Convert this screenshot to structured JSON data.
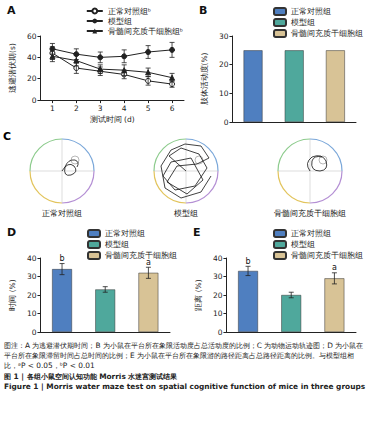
{
  "chart_data": [
    {
      "panel_label": "A",
      "type": "line",
      "x": [
        1,
        2,
        3,
        4,
        5,
        6
      ],
      "xlim": [
        0.5,
        6.5
      ],
      "xticks": [
        1,
        2,
        3,
        4,
        5,
        6
      ],
      "ylim": [
        0,
        60
      ],
      "yticks": [
        0,
        20,
        40,
        60
      ],
      "x_label": "测试时间 (d)",
      "y_label": "逃避潜伏期(s)",
      "legend": "top-right",
      "grid": false,
      "series": [
        {
          "name": "正常对照组ᵇ",
          "color": "#222222",
          "marker": "open_circle",
          "line_style": "solid",
          "values": [
            44,
            30,
            27,
            24,
            18,
            15
          ],
          "errors": [
            6,
            5,
            4,
            4,
            4,
            3
          ]
        },
        {
          "name": "模型组",
          "color": "#222222",
          "marker": "circle",
          "line_style": "solid",
          "values": [
            48,
            43,
            40,
            41,
            45,
            47
          ],
          "errors": [
            5,
            5,
            5,
            6,
            6,
            7
          ]
        },
        {
          "name": "骨髓间充质干细胞组ᵇ",
          "color": "#222222",
          "marker": "triangle",
          "line_style": "solid",
          "values": [
            41,
            37,
            29,
            28,
            26,
            21
          ],
          "errors": [
            5,
            5,
            4,
            5,
            4,
            4
          ]
        }
      ]
    },
    {
      "panel_label": "B",
      "type": "bar",
      "categories": [
        "正常对照组",
        "模型组",
        "骨髓间充质干细胞组"
      ],
      "values": [
        25,
        25,
        25
      ],
      "colors": [
        "#4f7fc0",
        "#4fa89c",
        "#d8c396"
      ],
      "ylim": [
        0,
        30
      ],
      "yticks": [
        0,
        10,
        20,
        30
      ],
      "y_label": "肢体活动度(%)",
      "legend": "top-right",
      "grid": false,
      "tick_labels": "y"
    },
    {
      "panel_label": "D",
      "type": "bar",
      "categories": [
        "正常对照组",
        "模型组",
        "骨髓间充质干细胞组"
      ],
      "values": [
        34,
        23,
        32
      ],
      "errors": [
        3,
        1.5,
        3
      ],
      "colors": [
        "#4f7fc0",
        "#4fa89c",
        "#d8c396"
      ],
      "ylim": [
        0,
        40
      ],
      "yticks": [
        0,
        10,
        20,
        30,
        40
      ],
      "y_label": "时间 (%)",
      "annotations": [
        {
          "category": "正常对照组",
          "text": "b"
        },
        {
          "category": "骨髓间充质干细胞组",
          "text": "a"
        }
      ],
      "legend": "top-right",
      "grid": false,
      "tick_labels": "y"
    },
    {
      "panel_label": "E",
      "type": "bar",
      "categories": [
        "正常对照组",
        "模型组",
        "骨髓间充质干细胞组"
      ],
      "values": [
        33,
        20,
        29
      ],
      "errors": [
        2.5,
        1.5,
        3
      ],
      "colors": [
        "#4f7fc0",
        "#4fa89c",
        "#d8c396"
      ],
      "ylim": [
        0,
        40
      ],
      "yticks": [
        0,
        10,
        20,
        30,
        40
      ],
      "y_label": "距离 (%)",
      "annotations": [
        {
          "category": "正常对照组",
          "text": "b"
        },
        {
          "category": "骨髓间充质干细胞组",
          "text": "a"
        }
      ],
      "legend": "top-right",
      "grid": false,
      "tick_labels": "y"
    }
  ],
  "trajectory_panel": {
    "panel_label": "C",
    "labels": [
      "正常对照组",
      "模型组",
      "骨髓间充质干细胞组"
    ]
  },
  "caption": {
    "note": "图注：A 为逃避潜伏期时间；B 为小鼠在平台所在象限活动度占总活动度的比例；C 为动物运动轨迹图；D 为小鼠在平台所在象限滞留时间占总时间的比例；E 为小鼠在平台所在象限游的路径距离占总路径距离的比例。与模型组相比，ᵃP < 0.05，ᵇP < 0.01",
    "title": "图 1 | 各组小鼠空间认知功能 Morris 水迷宫测试结果",
    "title_en": "Figure 1 | Morris water maze test on spatial cognitive function of mice in three groups"
  }
}
